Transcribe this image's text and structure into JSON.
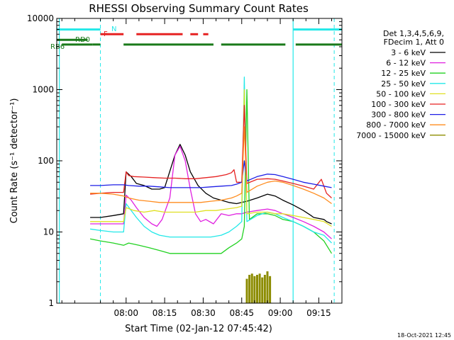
{
  "chart_data": {
    "type": "line",
    "title": "RHESSI Observing Summary Count Rates",
    "xlabel": "Start Time (02-Jan-12 07:45:42)",
    "ylabel": "Count Rate (s⁻¹ detector⁻¹)",
    "y_scale": "log",
    "ylim": [
      1,
      10000
    ],
    "xlim_minutes": [
      -12,
      99
    ],
    "x_ticks": [
      {
        "t": 15,
        "label": "08:00"
      },
      {
        "t": 30,
        "label": "08:15"
      },
      {
        "t": 45,
        "label": "08:30"
      },
      {
        "t": 60,
        "label": "08:45"
      },
      {
        "t": 75,
        "label": "09:00"
      },
      {
        "t": 90,
        "label": "09:15"
      }
    ],
    "y_ticks": [
      {
        "v": 1,
        "label": "1"
      },
      {
        "v": 10,
        "label": "10"
      },
      {
        "v": 100,
        "label": "100"
      },
      {
        "v": 1000,
        "label": "1000"
      },
      {
        "v": 10000,
        "label": "10000"
      }
    ],
    "legend_position": "right",
    "legend_header": [
      "Det 1,3,4,5,6,9,",
      "FDecim 1, Att 0"
    ],
    "series": [
      {
        "name": "3 - 6 keV",
        "color": "#000000",
        "points": [
          [
            1,
            16
          ],
          [
            5,
            16
          ],
          [
            10,
            17
          ],
          [
            14,
            18
          ],
          [
            15,
            70
          ],
          [
            17,
            60
          ],
          [
            19,
            48
          ],
          [
            22,
            45
          ],
          [
            25,
            40
          ],
          [
            28,
            40
          ],
          [
            30,
            42
          ],
          [
            34,
            120
          ],
          [
            36,
            170
          ],
          [
            38,
            120
          ],
          [
            40,
            70
          ],
          [
            43,
            45
          ],
          [
            46,
            35
          ],
          [
            49,
            30
          ],
          [
            52,
            28
          ],
          [
            55,
            26
          ],
          [
            58,
            25
          ],
          [
            60,
            26
          ],
          [
            62,
            27
          ],
          [
            66,
            30
          ],
          [
            70,
            34
          ],
          [
            73,
            32
          ],
          [
            76,
            28
          ],
          [
            80,
            24
          ],
          [
            84,
            20
          ],
          [
            87,
            17
          ],
          [
            88,
            16
          ],
          [
            92,
            15
          ],
          [
            93,
            14
          ],
          [
            95,
            13
          ]
        ]
      },
      {
        "name": "6 - 12 keV",
        "color": "#e020e0",
        "points": [
          [
            1,
            13
          ],
          [
            5,
            13
          ],
          [
            10,
            13
          ],
          [
            14,
            13
          ],
          [
            15,
            33
          ],
          [
            17,
            28
          ],
          [
            19,
            22
          ],
          [
            22,
            16
          ],
          [
            25,
            13
          ],
          [
            27,
            12
          ],
          [
            29,
            15
          ],
          [
            32,
            30
          ],
          [
            34,
            120
          ],
          [
            36,
            160
          ],
          [
            38,
            100
          ],
          [
            40,
            40
          ],
          [
            42,
            18
          ],
          [
            44,
            14
          ],
          [
            46,
            15
          ],
          [
            49,
            13
          ],
          [
            52,
            18
          ],
          [
            55,
            17
          ],
          [
            58,
            18
          ],
          [
            60,
            18
          ],
          [
            62,
            19
          ],
          [
            66,
            20
          ],
          [
            70,
            21
          ],
          [
            73,
            20
          ],
          [
            76,
            18
          ],
          [
            80,
            16
          ],
          [
            84,
            14
          ],
          [
            88,
            12
          ],
          [
            92,
            10
          ],
          [
            95,
            8
          ]
        ]
      },
      {
        "name": "12 - 25 keV",
        "color": "#22d222",
        "points": [
          [
            1,
            8
          ],
          [
            5,
            7.5
          ],
          [
            10,
            7
          ],
          [
            14,
            6.5
          ],
          [
            16,
            7
          ],
          [
            20,
            6.5
          ],
          [
            24,
            6
          ],
          [
            28,
            5.5
          ],
          [
            32,
            5
          ],
          [
            36,
            5
          ],
          [
            40,
            5
          ],
          [
            44,
            5
          ],
          [
            48,
            5
          ],
          [
            52,
            5
          ],
          [
            55,
            6
          ],
          [
            58,
            7
          ],
          [
            60,
            8
          ],
          [
            61,
            12
          ],
          [
            62,
            1000
          ],
          [
            63,
            15
          ],
          [
            66,
            18
          ],
          [
            70,
            18
          ],
          [
            73,
            17
          ],
          [
            76,
            15
          ],
          [
            80,
            14
          ],
          [
            84,
            12
          ],
          [
            88,
            10
          ],
          [
            92,
            7.5
          ],
          [
            95,
            5
          ]
        ]
      },
      {
        "name": "25 - 50 keV",
        "color": "#22e8e8",
        "points": [
          [
            1,
            11
          ],
          [
            5,
            10.5
          ],
          [
            10,
            10
          ],
          [
            14,
            10
          ],
          [
            15,
            25
          ],
          [
            17,
            20
          ],
          [
            19,
            16
          ],
          [
            22,
            12
          ],
          [
            25,
            10
          ],
          [
            28,
            9
          ],
          [
            32,
            8.5
          ],
          [
            36,
            8.5
          ],
          [
            40,
            8.5
          ],
          [
            44,
            8.5
          ],
          [
            48,
            8.5
          ],
          [
            52,
            9
          ],
          [
            55,
            10
          ],
          [
            58,
            12
          ],
          [
            60,
            14
          ],
          [
            61,
            1500
          ],
          [
            62,
            14
          ],
          [
            66,
            17
          ],
          [
            70,
            19
          ],
          [
            73,
            18
          ],
          [
            76,
            16
          ],
          [
            80,
            14
          ],
          [
            84,
            12
          ],
          [
            88,
            10
          ],
          [
            92,
            9
          ],
          [
            95,
            7
          ]
        ]
      },
      {
        "name": "50 - 100 keV",
        "color": "#e0e022",
        "points": [
          [
            1,
            14
          ],
          [
            5,
            14
          ],
          [
            10,
            14
          ],
          [
            14,
            14
          ],
          [
            15,
            22
          ],
          [
            18,
            20
          ],
          [
            22,
            19
          ],
          [
            26,
            20
          ],
          [
            30,
            19
          ],
          [
            34,
            19
          ],
          [
            38,
            19
          ],
          [
            42,
            19
          ],
          [
            46,
            20
          ],
          [
            50,
            20
          ],
          [
            54,
            21
          ],
          [
            58,
            22
          ],
          [
            60,
            23
          ],
          [
            61,
            1000
          ],
          [
            62,
            18
          ],
          [
            66,
            19
          ],
          [
            70,
            19
          ],
          [
            73,
            18
          ],
          [
            76,
            18
          ],
          [
            80,
            17
          ],
          [
            84,
            16
          ],
          [
            88,
            15
          ],
          [
            92,
            14
          ],
          [
            95,
            12
          ]
        ]
      },
      {
        "name": "100 - 300 keV",
        "color": "#e62222",
        "points": [
          [
            1,
            34
          ],
          [
            5,
            35
          ],
          [
            10,
            36
          ],
          [
            14,
            36
          ],
          [
            15,
            70
          ],
          [
            16,
            62
          ],
          [
            18,
            60
          ],
          [
            22,
            59
          ],
          [
            26,
            58
          ],
          [
            30,
            57
          ],
          [
            34,
            57
          ],
          [
            38,
            56
          ],
          [
            42,
            56
          ],
          [
            46,
            58
          ],
          [
            50,
            60
          ],
          [
            54,
            64
          ],
          [
            56,
            68
          ],
          [
            57,
            75
          ],
          [
            58,
            50
          ],
          [
            60,
            50
          ],
          [
            61,
            600
          ],
          [
            62,
            48
          ],
          [
            66,
            55
          ],
          [
            70,
            56
          ],
          [
            73,
            55
          ],
          [
            76,
            52
          ],
          [
            80,
            48
          ],
          [
            84,
            44
          ],
          [
            88,
            40
          ],
          [
            91,
            55
          ],
          [
            93,
            35
          ],
          [
            95,
            30
          ]
        ]
      },
      {
        "name": "300 - 800 keV",
        "color": "#1e1ee6",
        "points": [
          [
            1,
            45
          ],
          [
            5,
            45
          ],
          [
            10,
            46
          ],
          [
            14,
            46
          ],
          [
            16,
            45
          ],
          [
            20,
            44
          ],
          [
            24,
            44
          ],
          [
            28,
            43
          ],
          [
            32,
            42
          ],
          [
            36,
            42
          ],
          [
            40,
            42
          ],
          [
            44,
            42
          ],
          [
            48,
            43
          ],
          [
            52,
            44
          ],
          [
            56,
            45
          ],
          [
            58,
            47
          ],
          [
            60,
            50
          ],
          [
            61,
            100
          ],
          [
            62,
            52
          ],
          [
            66,
            60
          ],
          [
            70,
            65
          ],
          [
            73,
            64
          ],
          [
            76,
            60
          ],
          [
            80,
            55
          ],
          [
            84,
            50
          ],
          [
            88,
            47
          ],
          [
            92,
            44
          ],
          [
            95,
            42
          ]
        ]
      },
      {
        "name": "800 - 7000 keV",
        "color": "#ff8c1e",
        "points": [
          [
            1,
            35
          ],
          [
            5,
            35
          ],
          [
            10,
            34
          ],
          [
            14,
            32
          ],
          [
            16,
            30
          ],
          [
            20,
            28
          ],
          [
            24,
            27
          ],
          [
            28,
            26
          ],
          [
            32,
            26
          ],
          [
            36,
            26
          ],
          [
            40,
            26
          ],
          [
            44,
            26
          ],
          [
            48,
            27
          ],
          [
            52,
            28
          ],
          [
            56,
            30
          ],
          [
            58,
            32
          ],
          [
            60,
            35
          ],
          [
            61,
            300
          ],
          [
            62,
            36
          ],
          [
            66,
            44
          ],
          [
            70,
            50
          ],
          [
            73,
            52
          ],
          [
            76,
            50
          ],
          [
            80,
            45
          ],
          [
            84,
            40
          ],
          [
            88,
            35
          ],
          [
            92,
            30
          ],
          [
            95,
            25
          ]
        ]
      },
      {
        "name": "7000 - 15000 keV",
        "color": "#8c8c00",
        "points": [
          [
            57,
            1
          ],
          [
            58,
            1
          ],
          [
            59,
            1
          ],
          [
            60,
            1
          ],
          [
            61,
            1
          ],
          [
            62,
            2.2
          ],
          [
            63,
            2.5
          ],
          [
            64,
            2.6
          ],
          [
            65,
            2.4
          ],
          [
            66,
            2.5
          ],
          [
            67,
            2.6
          ],
          [
            68,
            2.3
          ],
          [
            69,
            2.5
          ],
          [
            70,
            2.8
          ],
          [
            71,
            2.4
          ],
          [
            72,
            1
          ]
        ]
      }
    ],
    "states": [
      {
        "label": "N",
        "color": "#22e8e8",
        "y": 7000,
        "segments": [
          [
            -12,
            5
          ],
          [
            80,
            99
          ]
        ]
      },
      {
        "label": "F",
        "color": "#e62222",
        "y": 6000,
        "segments": [
          [
            5,
            14
          ],
          [
            19,
            37
          ],
          [
            40,
            43
          ],
          [
            45,
            47
          ]
        ]
      },
      {
        "label": "RD0",
        "color": "#1a7a1a",
        "y": 5000,
        "segments": [
          [
            -12,
            0
          ]
        ]
      },
      {
        "label": "RB6",
        "color": "#1a7a1a",
        "y": 4300,
        "segments": [
          [
            -10,
            2
          ],
          [
            2,
            5
          ],
          [
            14,
            49
          ],
          [
            52,
            77
          ],
          [
            81,
            99
          ]
        ]
      }
    ],
    "markers": {
      "cyan_vlines_solid": [
        -11,
        80
      ],
      "cyan_vlines_dashed": [
        5,
        96
      ]
    }
  },
  "footer_stamp": "18-Oct-2021 12:45"
}
